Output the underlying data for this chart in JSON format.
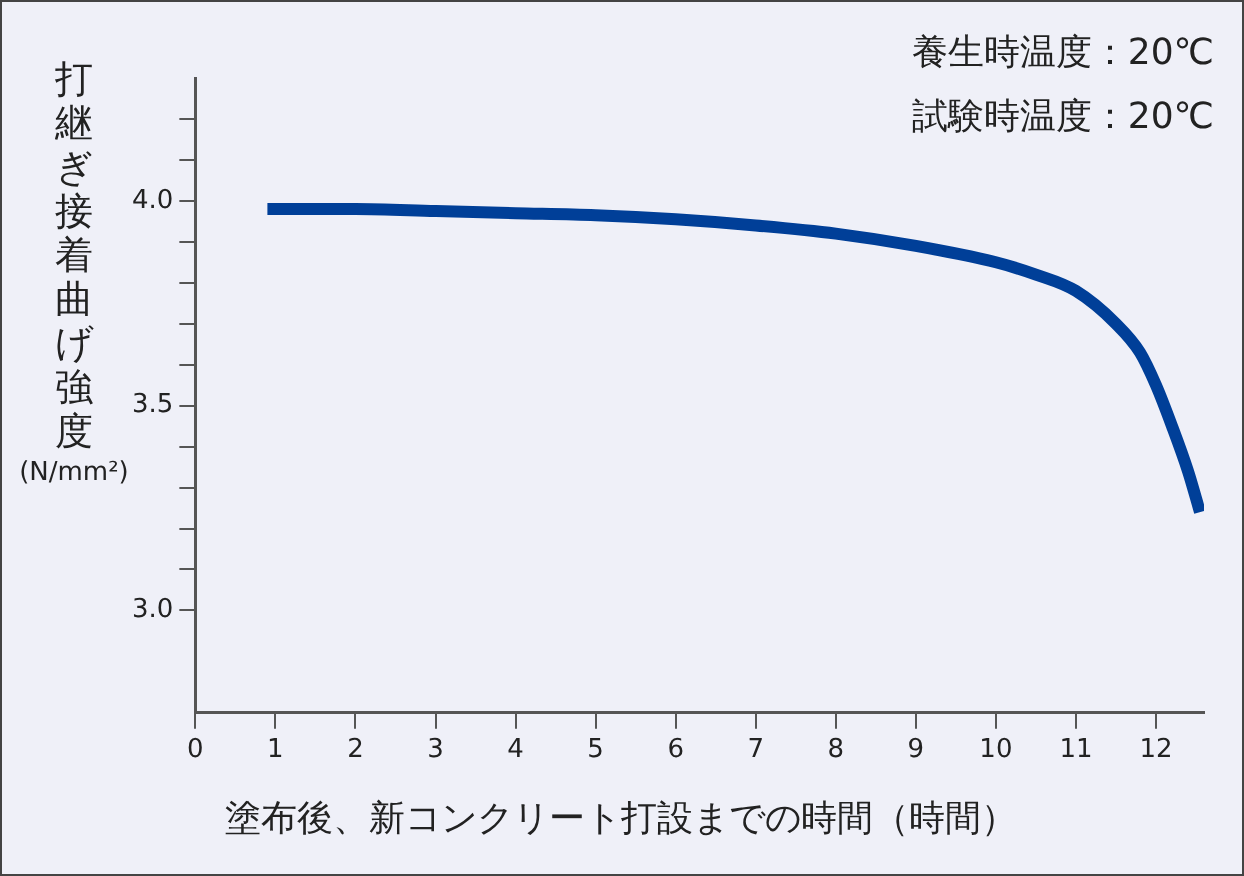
{
  "chart_data": {
    "type": "line",
    "xlabel": "塗布後、新コンクリート打設までの時間（時間）",
    "ylabel": "打継ぎ接着曲げ強度(N/mm²)",
    "annotations": [
      "養生時温度：20℃",
      "試験時温度：20℃"
    ],
    "x": [
      0.9,
      2,
      3,
      4,
      5,
      6,
      7,
      8,
      9,
      10,
      10.5,
      11,
      11.5,
      11.8,
      12,
      12.2,
      12.4,
      12.55
    ],
    "series": [
      {
        "color": "#003f98",
        "values": [
          3.98,
          3.98,
          3.975,
          3.97,
          3.965,
          3.955,
          3.94,
          3.92,
          3.89,
          3.85,
          3.82,
          3.78,
          3.7,
          3.63,
          3.55,
          3.45,
          3.34,
          3.24
        ]
      }
    ],
    "xlim": [
      0,
      12.6
    ],
    "xticks": [
      0,
      1,
      2,
      3,
      4,
      5,
      6,
      7,
      8,
      9,
      10,
      11,
      12
    ],
    "ylim": [
      2.75,
      4.3
    ],
    "yticks": [
      {
        "value": 3,
        "label": "3.0"
      },
      {
        "value": 3.1,
        "label": null
      },
      {
        "value": 3.2,
        "label": null
      },
      {
        "value": 3.3,
        "label": null
      },
      {
        "value": 3.4,
        "label": null
      },
      {
        "value": 3.5,
        "label": "3.5"
      },
      {
        "value": 3.6,
        "label": null
      },
      {
        "value": 3.7,
        "label": null
      },
      {
        "value": 3.8,
        "label": null
      },
      {
        "value": 3.9,
        "label": null
      },
      {
        "value": 4,
        "label": "4.0"
      },
      {
        "value": 4.1,
        "label": null
      },
      {
        "value": 4.2,
        "label": null
      }
    ],
    "grid": false,
    "legend": false,
    "marker": "none",
    "line_style": "solid"
  }
}
